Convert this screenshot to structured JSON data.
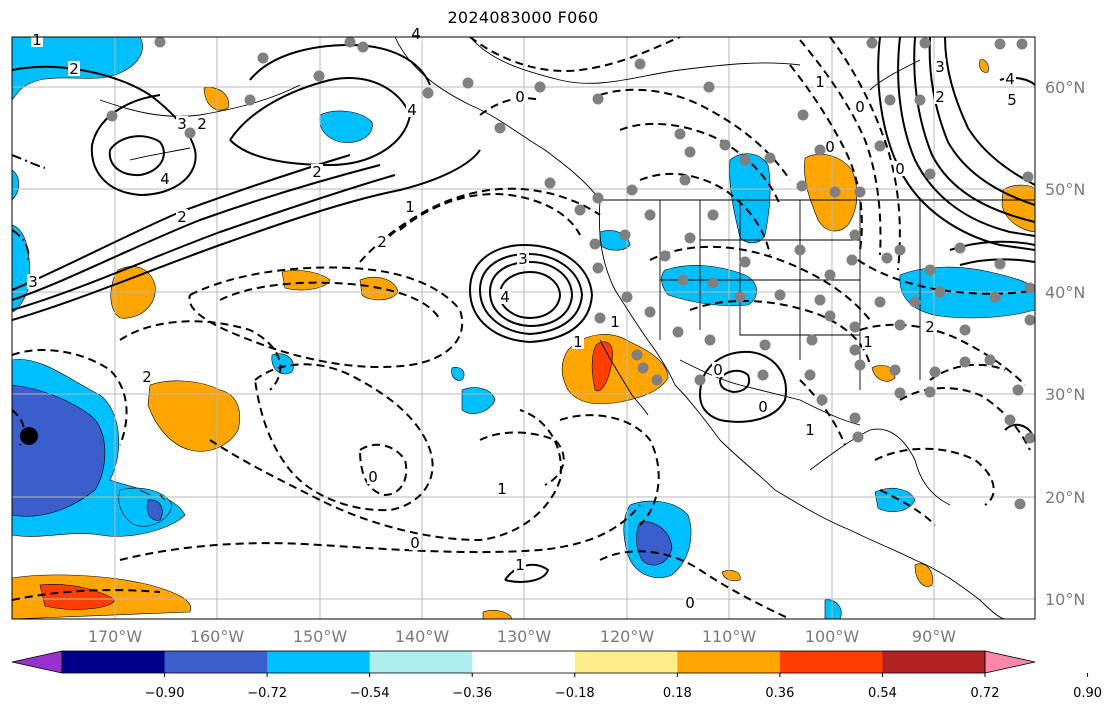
{
  "title": "2024083000 F060",
  "map": {
    "lon_range": [
      -180,
      -80
    ],
    "lat_range": [
      8,
      65
    ],
    "lon_ticks": [
      "170°W",
      "160°W",
      "150°W",
      "140°W",
      "130°W",
      "120°W",
      "110°W",
      "100°W",
      "90°W"
    ],
    "lat_ticks": [
      "60°N",
      "50°N",
      "40°N",
      "30°N",
      "20°N",
      "10°N"
    ],
    "grid": true
  },
  "colorbar": {
    "ticks": [
      "−0.90",
      "−0.72",
      "−0.54",
      "−0.36",
      "−0.18",
      "0.18",
      "0.36",
      "0.54",
      "0.72",
      "0.90"
    ],
    "colors": [
      "#9932cc",
      "#00008b",
      "#3a5fcd",
      "#00bfff",
      "#afeeee",
      "#ffffff",
      "#ffec8b",
      "#ffa500",
      "#ff3e00",
      "#b22222",
      "#ff88aa"
    ]
  },
  "contour_labels": [
    "1",
    "2",
    "3",
    "2",
    "4",
    "2",
    "3",
    "4",
    "4",
    "2",
    "2",
    "1",
    "0",
    "3",
    "4",
    "1",
    "1",
    "2",
    "1",
    "0",
    "0",
    "1",
    "0",
    "0",
    "0",
    "1",
    "1",
    "2",
    "0",
    "1",
    "0",
    "0",
    "2",
    "3",
    "4",
    "5"
  ],
  "station_marker": "black-dot"
}
